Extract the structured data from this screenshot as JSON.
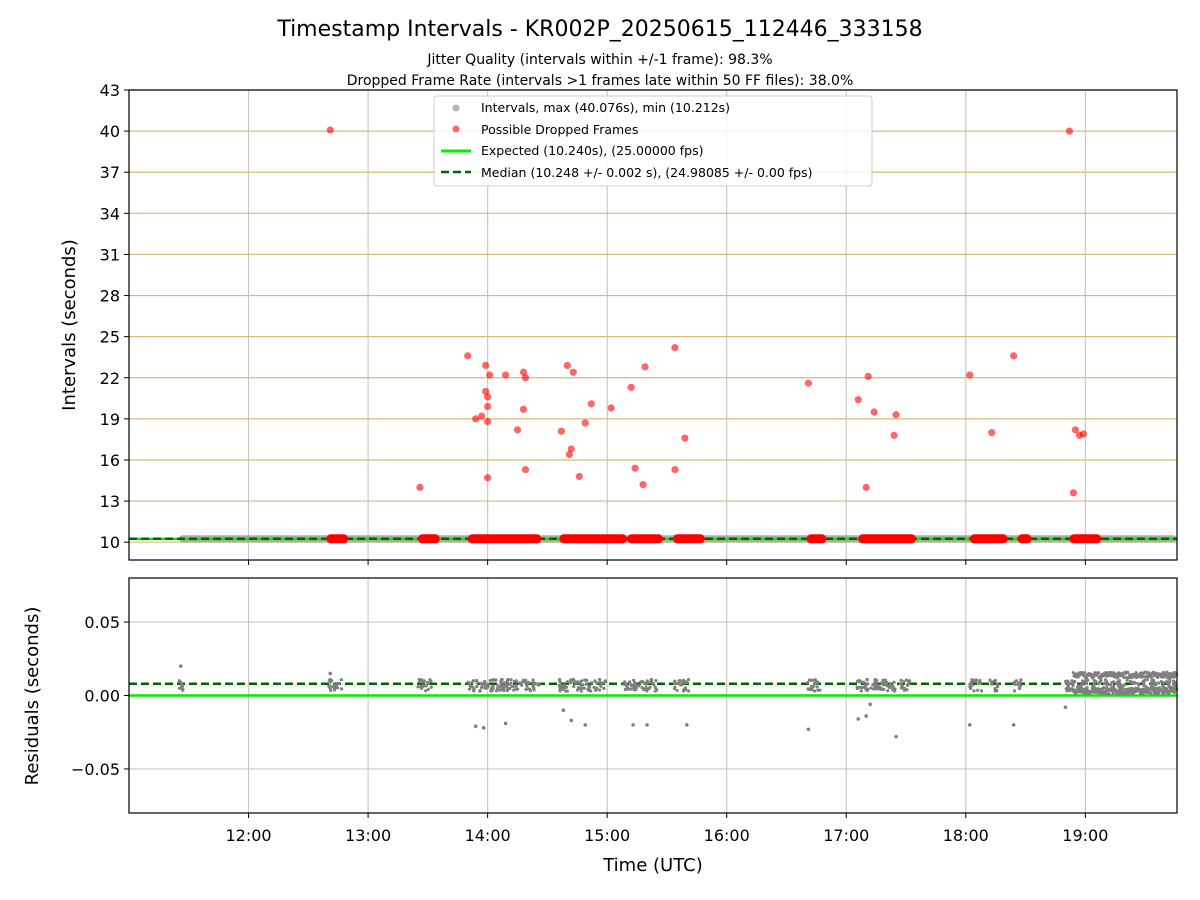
{
  "chart_data": [
    {
      "type": "scatter",
      "title": "Timestamp Intervals - KR002P_20250615_112446_333158",
      "subtitle_lines": [
        "Jitter Quality (intervals within +/-1 frame): 98.3%",
        "Dropped Frame Rate (intervals >1 frames late within 50 FF files): 38.0%"
      ],
      "ylabel": "Intervals (seconds)",
      "xlabel": "",
      "xlim": [
        "11:00",
        "19:46"
      ],
      "ylim": [
        8.7,
        43
      ],
      "y_ticks": [
        "10",
        "13",
        "16",
        "19",
        "22",
        "25",
        "28",
        "31",
        "34",
        "37",
        "40",
        "43"
      ],
      "x_ticks": [
        "12:00",
        "13:00",
        "14:00",
        "15:00",
        "16:00",
        "17:00",
        "18:00",
        "19:00"
      ],
      "grid": "horizontal gold lines and vertical grey lines",
      "legend": {
        "placement": "top-center",
        "entries": [
          "Intervals, max (40.076s), min (10.212s)",
          "Possible Dropped Frames",
          "Expected (10.240s), (25.00000 fps)",
          "Median (10.248 +/- 0.002 s), (24.98085 +/- 0.00 fps)"
        ]
      },
      "colors": {
        "intervals": "#a0a0a0",
        "dropped": "#ff0000",
        "expected": "#00ee00",
        "median": "#006400",
        "hgrid": "#d4bc78",
        "vgrid": "#c8c8c8"
      },
      "expected_value": 10.24,
      "median_value": 10.248,
      "dropped_series": [
        {
          "x": "12:41",
          "y": 40.08
        },
        {
          "x": "13:26",
          "y": 14.0
        },
        {
          "x": "13:50",
          "y": 23.6
        },
        {
          "x": "13:54",
          "y": 19.0
        },
        {
          "x": "13:57",
          "y": 19.2
        },
        {
          "x": "13:59",
          "y": 21.0
        },
        {
          "x": "13:59",
          "y": 22.9
        },
        {
          "x": "14:00",
          "y": 20.6
        },
        {
          "x": "14:00",
          "y": 19.9
        },
        {
          "x": "14:00",
          "y": 18.8
        },
        {
          "x": "14:00",
          "y": 14.7
        },
        {
          "x": "14:01",
          "y": 22.2
        },
        {
          "x": "14:09",
          "y": 22.2
        },
        {
          "x": "14:15",
          "y": 18.2
        },
        {
          "x": "14:18",
          "y": 19.7
        },
        {
          "x": "14:18",
          "y": 22.4
        },
        {
          "x": "14:19",
          "y": 22.0
        },
        {
          "x": "14:19",
          "y": 15.3
        },
        {
          "x": "14:37",
          "y": 18.1
        },
        {
          "x": "14:40",
          "y": 22.9
        },
        {
          "x": "14:41",
          "y": 16.4
        },
        {
          "x": "14:42",
          "y": 16.8
        },
        {
          "x": "14:43",
          "y": 22.4
        },
        {
          "x": "14:46",
          "y": 14.8
        },
        {
          "x": "14:49",
          "y": 18.7
        },
        {
          "x": "14:52",
          "y": 20.1
        },
        {
          "x": "15:02",
          "y": 19.8
        },
        {
          "x": "15:12",
          "y": 21.3
        },
        {
          "x": "15:14",
          "y": 15.4
        },
        {
          "x": "15:18",
          "y": 14.2
        },
        {
          "x": "15:19",
          "y": 22.8
        },
        {
          "x": "15:34",
          "y": 24.2
        },
        {
          "x": "15:34",
          "y": 15.3
        },
        {
          "x": "15:39",
          "y": 17.6
        },
        {
          "x": "16:41",
          "y": 21.6
        },
        {
          "x": "17:06",
          "y": 20.4
        },
        {
          "x": "17:10",
          "y": 14.0
        },
        {
          "x": "17:11",
          "y": 22.1
        },
        {
          "x": "17:14",
          "y": 19.5
        },
        {
          "x": "17:24",
          "y": 17.8
        },
        {
          "x": "17:25",
          "y": 19.3
        },
        {
          "x": "18:02",
          "y": 22.2
        },
        {
          "x": "18:13",
          "y": 18.0
        },
        {
          "x": "18:24",
          "y": 23.6
        },
        {
          "x": "18:52",
          "y": 40.0
        },
        {
          "x": "18:54",
          "y": 13.6
        },
        {
          "x": "18:55",
          "y": 18.2
        },
        {
          "x": "18:57",
          "y": 17.8
        },
        {
          "x": "18:59",
          "y": 17.9
        }
      ],
      "dropped_near_median_ranges": [
        [
          "12:39",
          "12:50"
        ],
        [
          "13:25",
          "13:36"
        ],
        [
          "13:50",
          "14:27"
        ],
        [
          "14:36",
          "15:10"
        ],
        [
          "15:10",
          "15:28"
        ],
        [
          "15:33",
          "15:49"
        ],
        [
          "16:40",
          "16:50"
        ],
        [
          "17:06",
          "17:35"
        ],
        [
          "18:02",
          "18:21"
        ],
        [
          "18:26",
          "18:33"
        ],
        [
          "18:52",
          "19:08"
        ]
      ],
      "interval_coverage": [
        "11:25",
        "19:46"
      ]
    },
    {
      "type": "scatter",
      "ylabel": "Residuals (seconds)",
      "xlabel": "Time (UTC)",
      "xlim": [
        "11:00",
        "19:46"
      ],
      "ylim": [
        -0.08,
        0.08
      ],
      "y_ticks": [
        "0.05",
        "0.00",
        "−0.05"
      ],
      "x_ticks": [
        "12:00",
        "13:00",
        "14:00",
        "15:00",
        "16:00",
        "17:00",
        "18:00",
        "19:00"
      ],
      "expected_residual": 0.0,
      "median_residual": 0.008,
      "outliers": [
        {
          "x": "11:26",
          "y": 0.02
        },
        {
          "x": "12:41",
          "y": 0.015
        },
        {
          "x": "13:54",
          "y": -0.021
        },
        {
          "x": "13:58",
          "y": -0.022
        },
        {
          "x": "14:09",
          "y": -0.019
        },
        {
          "x": "14:38",
          "y": -0.01
        },
        {
          "x": "14:42",
          "y": -0.017
        },
        {
          "x": "14:49",
          "y": -0.02
        },
        {
          "x": "15:13",
          "y": -0.02
        },
        {
          "x": "15:20",
          "y": -0.02
        },
        {
          "x": "15:40",
          "y": -0.02
        },
        {
          "x": "16:41",
          "y": -0.023
        },
        {
          "x": "17:06",
          "y": -0.016
        },
        {
          "x": "17:10",
          "y": -0.014
        },
        {
          "x": "17:12",
          "y": -0.006
        },
        {
          "x": "17:25",
          "y": -0.028
        },
        {
          "x": "18:02",
          "y": -0.02
        },
        {
          "x": "18:24",
          "y": -0.02
        },
        {
          "x": "18:50",
          "y": -0.008
        }
      ]
    }
  ]
}
